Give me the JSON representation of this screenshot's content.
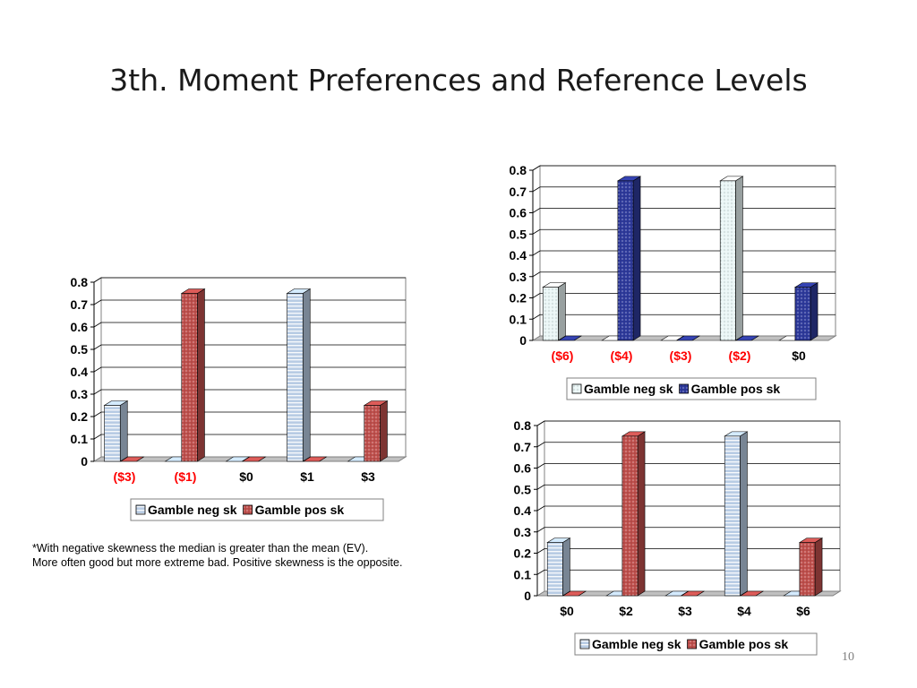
{
  "slide": {
    "title": "3th. Moment Preferences and Reference Levels",
    "note_line1": "*With negative skewness the median is greater than the mean (EV).",
    "note_line2": "More often good but more extreme bad. Positive skewness is the opposite.",
    "page_number": "10"
  },
  "chart_data": [
    {
      "id": "left",
      "type": "bar",
      "categories": [
        "($3)",
        "($1)",
        "$0",
        "$1",
        "$3"
      ],
      "category_colors": [
        "#ff0000",
        "#ff0000",
        "#000000",
        "#000000",
        "#000000"
      ],
      "series": [
        {
          "name": "Gamble neg sk",
          "values": [
            0.25,
            0,
            0,
            0.75,
            0
          ],
          "color": "#b8cce4",
          "pattern": "hstripe"
        },
        {
          "name": "Gamble pos sk",
          "values": [
            0,
            0.75,
            0,
            0,
            0.25
          ],
          "color": "#c0504d",
          "pattern": "dots"
        }
      ],
      "yticks": [
        "0",
        "0.1",
        "0.2",
        "0.3",
        "0.4",
        "0.5",
        "0.6",
        "0.7",
        "0.8"
      ],
      "ylim": [
        0,
        0.8
      ],
      "grid": true,
      "legend": "bottom"
    },
    {
      "id": "top-right",
      "type": "bar",
      "categories": [
        "($6)",
        "($4)",
        "($3)",
        "($2)",
        "$0"
      ],
      "category_colors": [
        "#ff0000",
        "#ff0000",
        "#ff0000",
        "#ff0000",
        "#000000"
      ],
      "series": [
        {
          "name": "Gamble neg sk",
          "values": [
            0.25,
            0,
            0,
            0.75,
            0
          ],
          "color": "#eaf6f6",
          "pattern": "dots"
        },
        {
          "name": "Gamble pos sk",
          "values": [
            0,
            0.75,
            0,
            0,
            0.25
          ],
          "color": "#2e3a9c",
          "pattern": "dots"
        }
      ],
      "yticks": [
        "0",
        "0.1",
        "0.2",
        "0.3",
        "0.4",
        "0.5",
        "0.6",
        "0.7",
        "0.8"
      ],
      "ylim": [
        0,
        0.8
      ],
      "grid": true,
      "legend": "bottom"
    },
    {
      "id": "bottom-right",
      "type": "bar",
      "categories": [
        "$0",
        "$2",
        "$3",
        "$4",
        "$6"
      ],
      "category_colors": [
        "#000000",
        "#000000",
        "#000000",
        "#000000",
        "#000000"
      ],
      "series": [
        {
          "name": "Gamble neg sk",
          "values": [
            0.25,
            0,
            0,
            0.75,
            0
          ],
          "color": "#b8cce4",
          "pattern": "hstripe"
        },
        {
          "name": "Gamble pos sk",
          "values": [
            0,
            0.75,
            0,
            0,
            0.25
          ],
          "color": "#c0504d",
          "pattern": "dots"
        }
      ],
      "yticks": [
        "0",
        "0.1",
        "0.2",
        "0.3",
        "0.4",
        "0.5",
        "0.6",
        "0.7",
        "0.8"
      ],
      "ylim": [
        0,
        0.8
      ],
      "grid": true,
      "legend": "bottom"
    }
  ]
}
